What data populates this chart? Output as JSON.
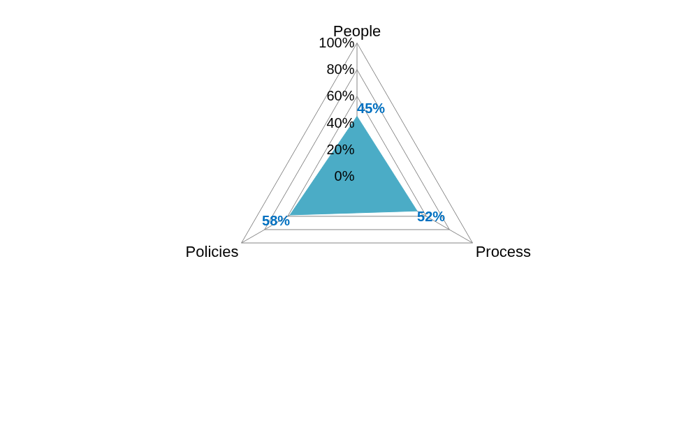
{
  "chart_data": {
    "type": "radar",
    "categories": [
      "People",
      "Process",
      "Policies"
    ],
    "series": [
      {
        "color": "#4bacc6",
        "values": [
          45,
          52,
          58
        ],
        "value_labels": [
          "45%",
          "52%",
          "58%"
        ]
      }
    ],
    "ylim": [
      0,
      100
    ],
    "yticks": [
      {
        "value": 0,
        "label": "0%"
      },
      {
        "value": 20,
        "label": "20%"
      },
      {
        "value": 40,
        "label": "40%"
      },
      {
        "value": 60,
        "label": "60%"
      },
      {
        "value": 80,
        "label": "80%"
      },
      {
        "value": 100,
        "label": "100%"
      }
    ],
    "grid": true,
    "marker": "none"
  }
}
